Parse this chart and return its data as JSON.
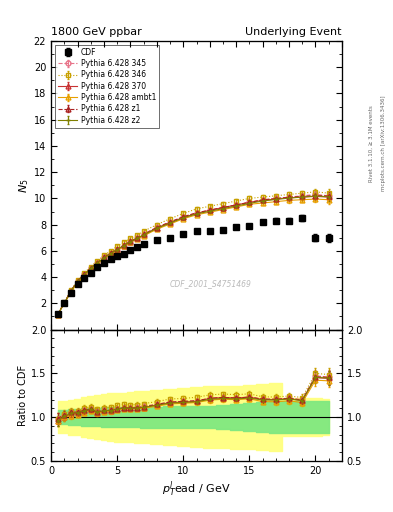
{
  "title_left": "1800 GeV ppbar",
  "title_right": "Underlying Event",
  "ylabel_main": "$N_5$",
  "ylabel_ratio": "Ratio to CDF",
  "xlabel": "$p_T^l\\mathrm{ead}$ / GeV",
  "right_label": "Rivet 3.1.10, ≥ 3.1M events",
  "right_label2": "mcplots.cern.ch [arXiv:1306.3436]",
  "watermark": "CDF_2001_S4751469",
  "ylim_main": [
    0,
    22
  ],
  "ylim_ratio": [
    0.5,
    2.0
  ],
  "xlim": [
    0,
    22
  ],
  "y_ticks_main": [
    2,
    4,
    6,
    8,
    10,
    12,
    14,
    16,
    18,
    20,
    22
  ],
  "y_ticks_ratio": [
    0.5,
    1.0,
    1.5,
    2.0
  ],
  "x_ticks_ratio": [
    0,
    5,
    10,
    15,
    20
  ],
  "pt": [
    0.5,
    1.0,
    1.5,
    2.0,
    2.5,
    3.0,
    3.5,
    4.0,
    4.5,
    5.0,
    5.5,
    6.0,
    6.5,
    7.0,
    8.0,
    9.0,
    10.0,
    11.0,
    12.0,
    13.0,
    14.0,
    15.0,
    16.0,
    17.0,
    18.0,
    19.0,
    20.0,
    21.0
  ],
  "cdf_y": [
    1.2,
    2.0,
    2.8,
    3.5,
    3.9,
    4.3,
    4.8,
    5.1,
    5.4,
    5.6,
    5.8,
    6.1,
    6.3,
    6.5,
    6.8,
    7.0,
    7.3,
    7.5,
    7.5,
    7.6,
    7.8,
    7.9,
    8.2,
    8.3,
    8.3,
    8.5,
    7.0,
    7.0
  ],
  "cdf_yerr": [
    0.05,
    0.06,
    0.07,
    0.08,
    0.08,
    0.08,
    0.08,
    0.09,
    0.09,
    0.09,
    0.1,
    0.1,
    0.1,
    0.1,
    0.11,
    0.11,
    0.12,
    0.12,
    0.13,
    0.13,
    0.14,
    0.15,
    0.16,
    0.17,
    0.18,
    0.2,
    0.25,
    0.3
  ],
  "p345_y": [
    1.18,
    2.05,
    2.95,
    3.7,
    4.2,
    4.7,
    5.1,
    5.5,
    5.8,
    6.1,
    6.4,
    6.7,
    7.0,
    7.3,
    7.8,
    8.2,
    8.6,
    8.9,
    9.1,
    9.3,
    9.5,
    9.7,
    9.9,
    10.0,
    10.1,
    10.2,
    10.3,
    10.2
  ],
  "p345_yerr": [
    0.05,
    0.06,
    0.07,
    0.08,
    0.08,
    0.08,
    0.08,
    0.09,
    0.09,
    0.09,
    0.1,
    0.1,
    0.1,
    0.1,
    0.11,
    0.11,
    0.12,
    0.12,
    0.13,
    0.13,
    0.14,
    0.15,
    0.16,
    0.17,
    0.18,
    0.2,
    0.25,
    0.3
  ],
  "p346_y": [
    1.18,
    2.08,
    3.0,
    3.75,
    4.3,
    4.8,
    5.25,
    5.65,
    6.0,
    6.35,
    6.65,
    6.95,
    7.2,
    7.5,
    8.0,
    8.45,
    8.85,
    9.2,
    9.4,
    9.6,
    9.8,
    10.0,
    10.1,
    10.2,
    10.3,
    10.4,
    10.5,
    10.4
  ],
  "p346_yerr": [
    0.05,
    0.06,
    0.07,
    0.08,
    0.08,
    0.08,
    0.08,
    0.09,
    0.09,
    0.09,
    0.1,
    0.1,
    0.1,
    0.1,
    0.11,
    0.11,
    0.12,
    0.12,
    0.13,
    0.13,
    0.14,
    0.15,
    0.16,
    0.17,
    0.18,
    0.2,
    0.25,
    0.3
  ],
  "p370_y": [
    1.15,
    2.0,
    2.9,
    3.65,
    4.15,
    4.65,
    5.05,
    5.45,
    5.8,
    6.1,
    6.4,
    6.7,
    6.95,
    7.2,
    7.75,
    8.15,
    8.55,
    8.85,
    9.1,
    9.3,
    9.5,
    9.7,
    9.85,
    9.95,
    10.05,
    10.1,
    10.15,
    10.1
  ],
  "p370_yerr": [
    0.05,
    0.06,
    0.07,
    0.08,
    0.08,
    0.08,
    0.08,
    0.09,
    0.09,
    0.09,
    0.1,
    0.1,
    0.1,
    0.1,
    0.11,
    0.11,
    0.12,
    0.12,
    0.13,
    0.13,
    0.14,
    0.15,
    0.16,
    0.17,
    0.18,
    0.2,
    0.25,
    0.3
  ],
  "pambt1_y": [
    1.15,
    2.0,
    2.85,
    3.6,
    4.1,
    4.6,
    5.0,
    5.4,
    5.75,
    6.05,
    6.35,
    6.65,
    6.9,
    7.15,
    7.65,
    8.05,
    8.45,
    8.75,
    8.95,
    9.15,
    9.35,
    9.55,
    9.65,
    9.75,
    9.85,
    9.9,
    9.95,
    9.9
  ],
  "pambt1_yerr": [
    0.05,
    0.06,
    0.07,
    0.08,
    0.08,
    0.08,
    0.08,
    0.09,
    0.09,
    0.09,
    0.1,
    0.1,
    0.1,
    0.1,
    0.11,
    0.11,
    0.12,
    0.12,
    0.13,
    0.13,
    0.14,
    0.15,
    0.16,
    0.17,
    0.18,
    0.2,
    0.25,
    0.3
  ],
  "pz1_y": [
    1.18,
    2.05,
    2.95,
    3.7,
    4.2,
    4.7,
    5.1,
    5.5,
    5.82,
    6.12,
    6.42,
    6.72,
    6.98,
    7.25,
    7.78,
    8.2,
    8.6,
    8.9,
    9.1,
    9.3,
    9.5,
    9.7,
    9.88,
    9.98,
    10.08,
    10.15,
    10.22,
    10.18
  ],
  "pz1_yerr": [
    0.05,
    0.06,
    0.07,
    0.08,
    0.08,
    0.08,
    0.08,
    0.09,
    0.09,
    0.09,
    0.1,
    0.1,
    0.1,
    0.1,
    0.11,
    0.11,
    0.12,
    0.12,
    0.13,
    0.13,
    0.14,
    0.15,
    0.16,
    0.17,
    0.18,
    0.2,
    0.25,
    0.3
  ],
  "pz2_y": [
    1.15,
    2.02,
    2.92,
    3.68,
    4.18,
    4.68,
    5.08,
    5.48,
    5.8,
    6.1,
    6.4,
    6.7,
    6.95,
    7.22,
    7.72,
    8.12,
    8.52,
    8.82,
    9.02,
    9.22,
    9.42,
    9.62,
    9.8,
    9.92,
    10.02,
    10.1,
    10.18,
    10.12
  ],
  "pz2_yerr": [
    0.05,
    0.06,
    0.07,
    0.08,
    0.08,
    0.08,
    0.08,
    0.09,
    0.09,
    0.09,
    0.1,
    0.1,
    0.1,
    0.1,
    0.11,
    0.11,
    0.12,
    0.12,
    0.13,
    0.13,
    0.14,
    0.15,
    0.16,
    0.17,
    0.18,
    0.2,
    0.25,
    0.3
  ],
  "color_cdf": "#000000",
  "color_345": "#e8748a",
  "color_346": "#c8a000",
  "color_370": "#c83232",
  "color_ambt1": "#e8a000",
  "color_z1": "#aa2222",
  "color_z2": "#808000",
  "band_green_lo": [
    0.92,
    0.92,
    0.91,
    0.91,
    0.9,
    0.9,
    0.9,
    0.89,
    0.89,
    0.89,
    0.89,
    0.89,
    0.89,
    0.88,
    0.88,
    0.87,
    0.87,
    0.87,
    0.87,
    0.86,
    0.85,
    0.84,
    0.83,
    0.82,
    0.82,
    0.82,
    0.82,
    0.82
  ],
  "band_green_hi": [
    1.08,
    1.08,
    1.09,
    1.09,
    1.1,
    1.1,
    1.1,
    1.11,
    1.11,
    1.11,
    1.11,
    1.11,
    1.11,
    1.12,
    1.12,
    1.13,
    1.13,
    1.13,
    1.13,
    1.14,
    1.15,
    1.16,
    1.17,
    1.18,
    1.18,
    1.18,
    1.18,
    1.18
  ],
  "band_yellow_lo": [
    0.82,
    0.82,
    0.8,
    0.79,
    0.77,
    0.76,
    0.75,
    0.74,
    0.73,
    0.72,
    0.72,
    0.71,
    0.7,
    0.7,
    0.69,
    0.68,
    0.67,
    0.66,
    0.65,
    0.65,
    0.64,
    0.63,
    0.62,
    0.61,
    0.78,
    0.78,
    0.78,
    0.79
  ],
  "band_yellow_hi": [
    1.18,
    1.18,
    1.2,
    1.21,
    1.23,
    1.24,
    1.25,
    1.26,
    1.27,
    1.28,
    1.28,
    1.29,
    1.3,
    1.3,
    1.31,
    1.32,
    1.33,
    1.34,
    1.35,
    1.35,
    1.36,
    1.37,
    1.38,
    1.39,
    1.22,
    1.22,
    1.22,
    1.21
  ]
}
